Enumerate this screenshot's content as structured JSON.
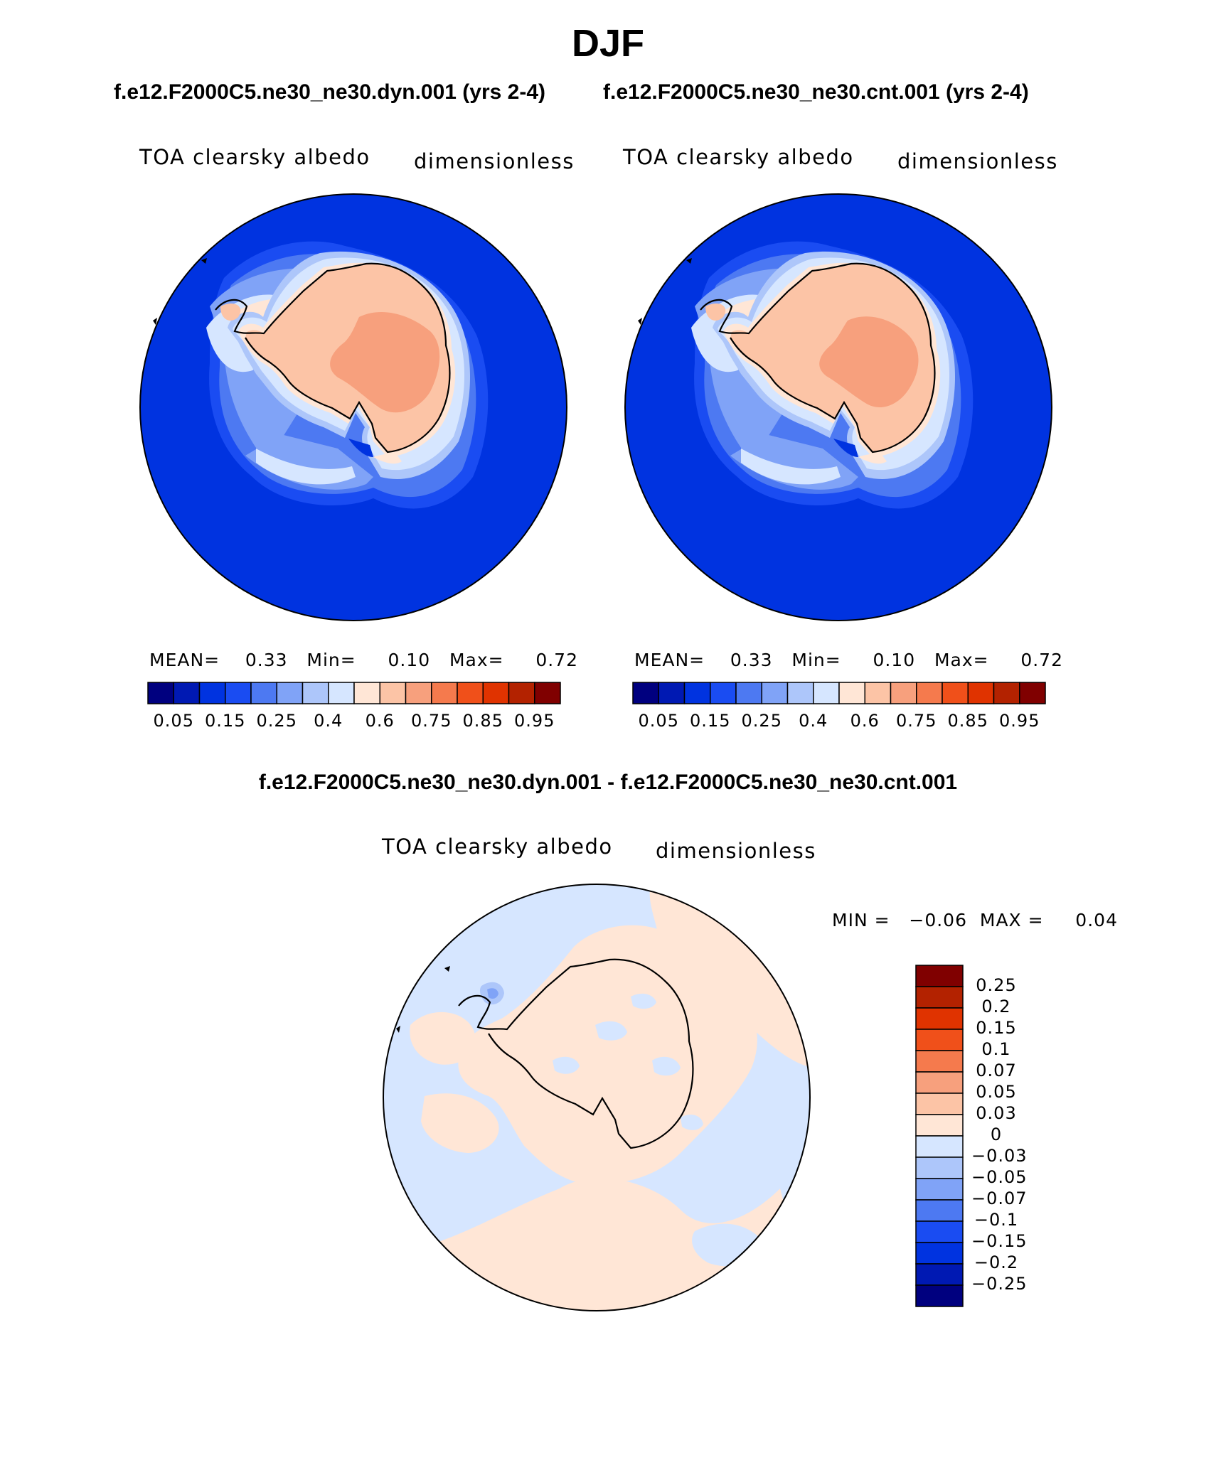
{
  "title": "DJF",
  "top_subtitle_left": "f.e12.F2000C5.ne30_ne30.dyn.001 (yrs 2-4)",
  "top_subtitle_right": "f.e12.F2000C5.ne30_ne30.cnt.001 (yrs 2-4)",
  "panels": [
    {
      "variable": "TOA clearsky albedo",
      "units": "dimensionless",
      "stats": "MEAN=    0.33   Min=     0.10   Max=     0.72"
    },
    {
      "variable": "TOA clearsky albedo",
      "units": "dimensionless",
      "stats": "MEAN=    0.33   Min=     0.10   Max=     0.72"
    }
  ],
  "colorbar_top": {
    "colors": [
      "#00007f",
      "#0019b3",
      "#0033e0",
      "#1a4cf2",
      "#4d79f2",
      "#80a3f7",
      "#adc6fa",
      "#d6e6ff",
      "#ffe6d6",
      "#fcc4a6",
      "#f7a07d",
      "#f57a4d",
      "#f0501a",
      "#e03300",
      "#b32200",
      "#800000"
    ],
    "tick_labels": [
      "0.05",
      "0.15",
      "0.25",
      "0.4",
      "0.6",
      "0.75",
      "0.85",
      "0.95"
    ]
  },
  "diff_title": "f.e12.F2000C5.ne30_ne30.dyn.001 - f.e12.F2000C5.ne30_ne30.cnt.001",
  "diff_panel": {
    "variable": "TOA clearsky albedo",
    "units": "dimensionless",
    "minmax": "MIN =   −0.06  MAX =     0.04"
  },
  "colorbar_diff": {
    "colors_top_to_bottom": [
      "#800000",
      "#b32200",
      "#e03300",
      "#f0501a",
      "#f57a4d",
      "#f7a07d",
      "#fcc4a6",
      "#ffe6d6",
      "#d6e6ff",
      "#adc6fa",
      "#80a3f7",
      "#4d79f2",
      "#1a4cf2",
      "#0033e0",
      "#0019b3",
      "#00007f"
    ],
    "tick_labels": [
      "0.25",
      "0.2",
      "0.15",
      "0.1",
      "0.07",
      "0.05",
      "0.03",
      "0",
      "−0.03",
      "−0.05",
      "−0.07",
      "−0.1",
      "−0.15",
      "−0.2",
      "−0.25"
    ]
  },
  "map_colors": {
    "ocean": "#0033e0",
    "ice_ring_1": "#1a4cf2",
    "ice_ring_2": "#4d79f2",
    "ice_ring_3": "#80a3f7",
    "ice_ring_4": "#adc6fa",
    "ice_ring_5": "#d6e6ff",
    "coast_band": "#ffe6d6",
    "continent": "#fcc4a6",
    "interior": "#f7a07d",
    "diff_positive": "#ffe6d6",
    "diff_negative": "#d6e6ff",
    "diff_negative_2": "#adc6fa",
    "diff_negative_3": "#80a3f7"
  }
}
